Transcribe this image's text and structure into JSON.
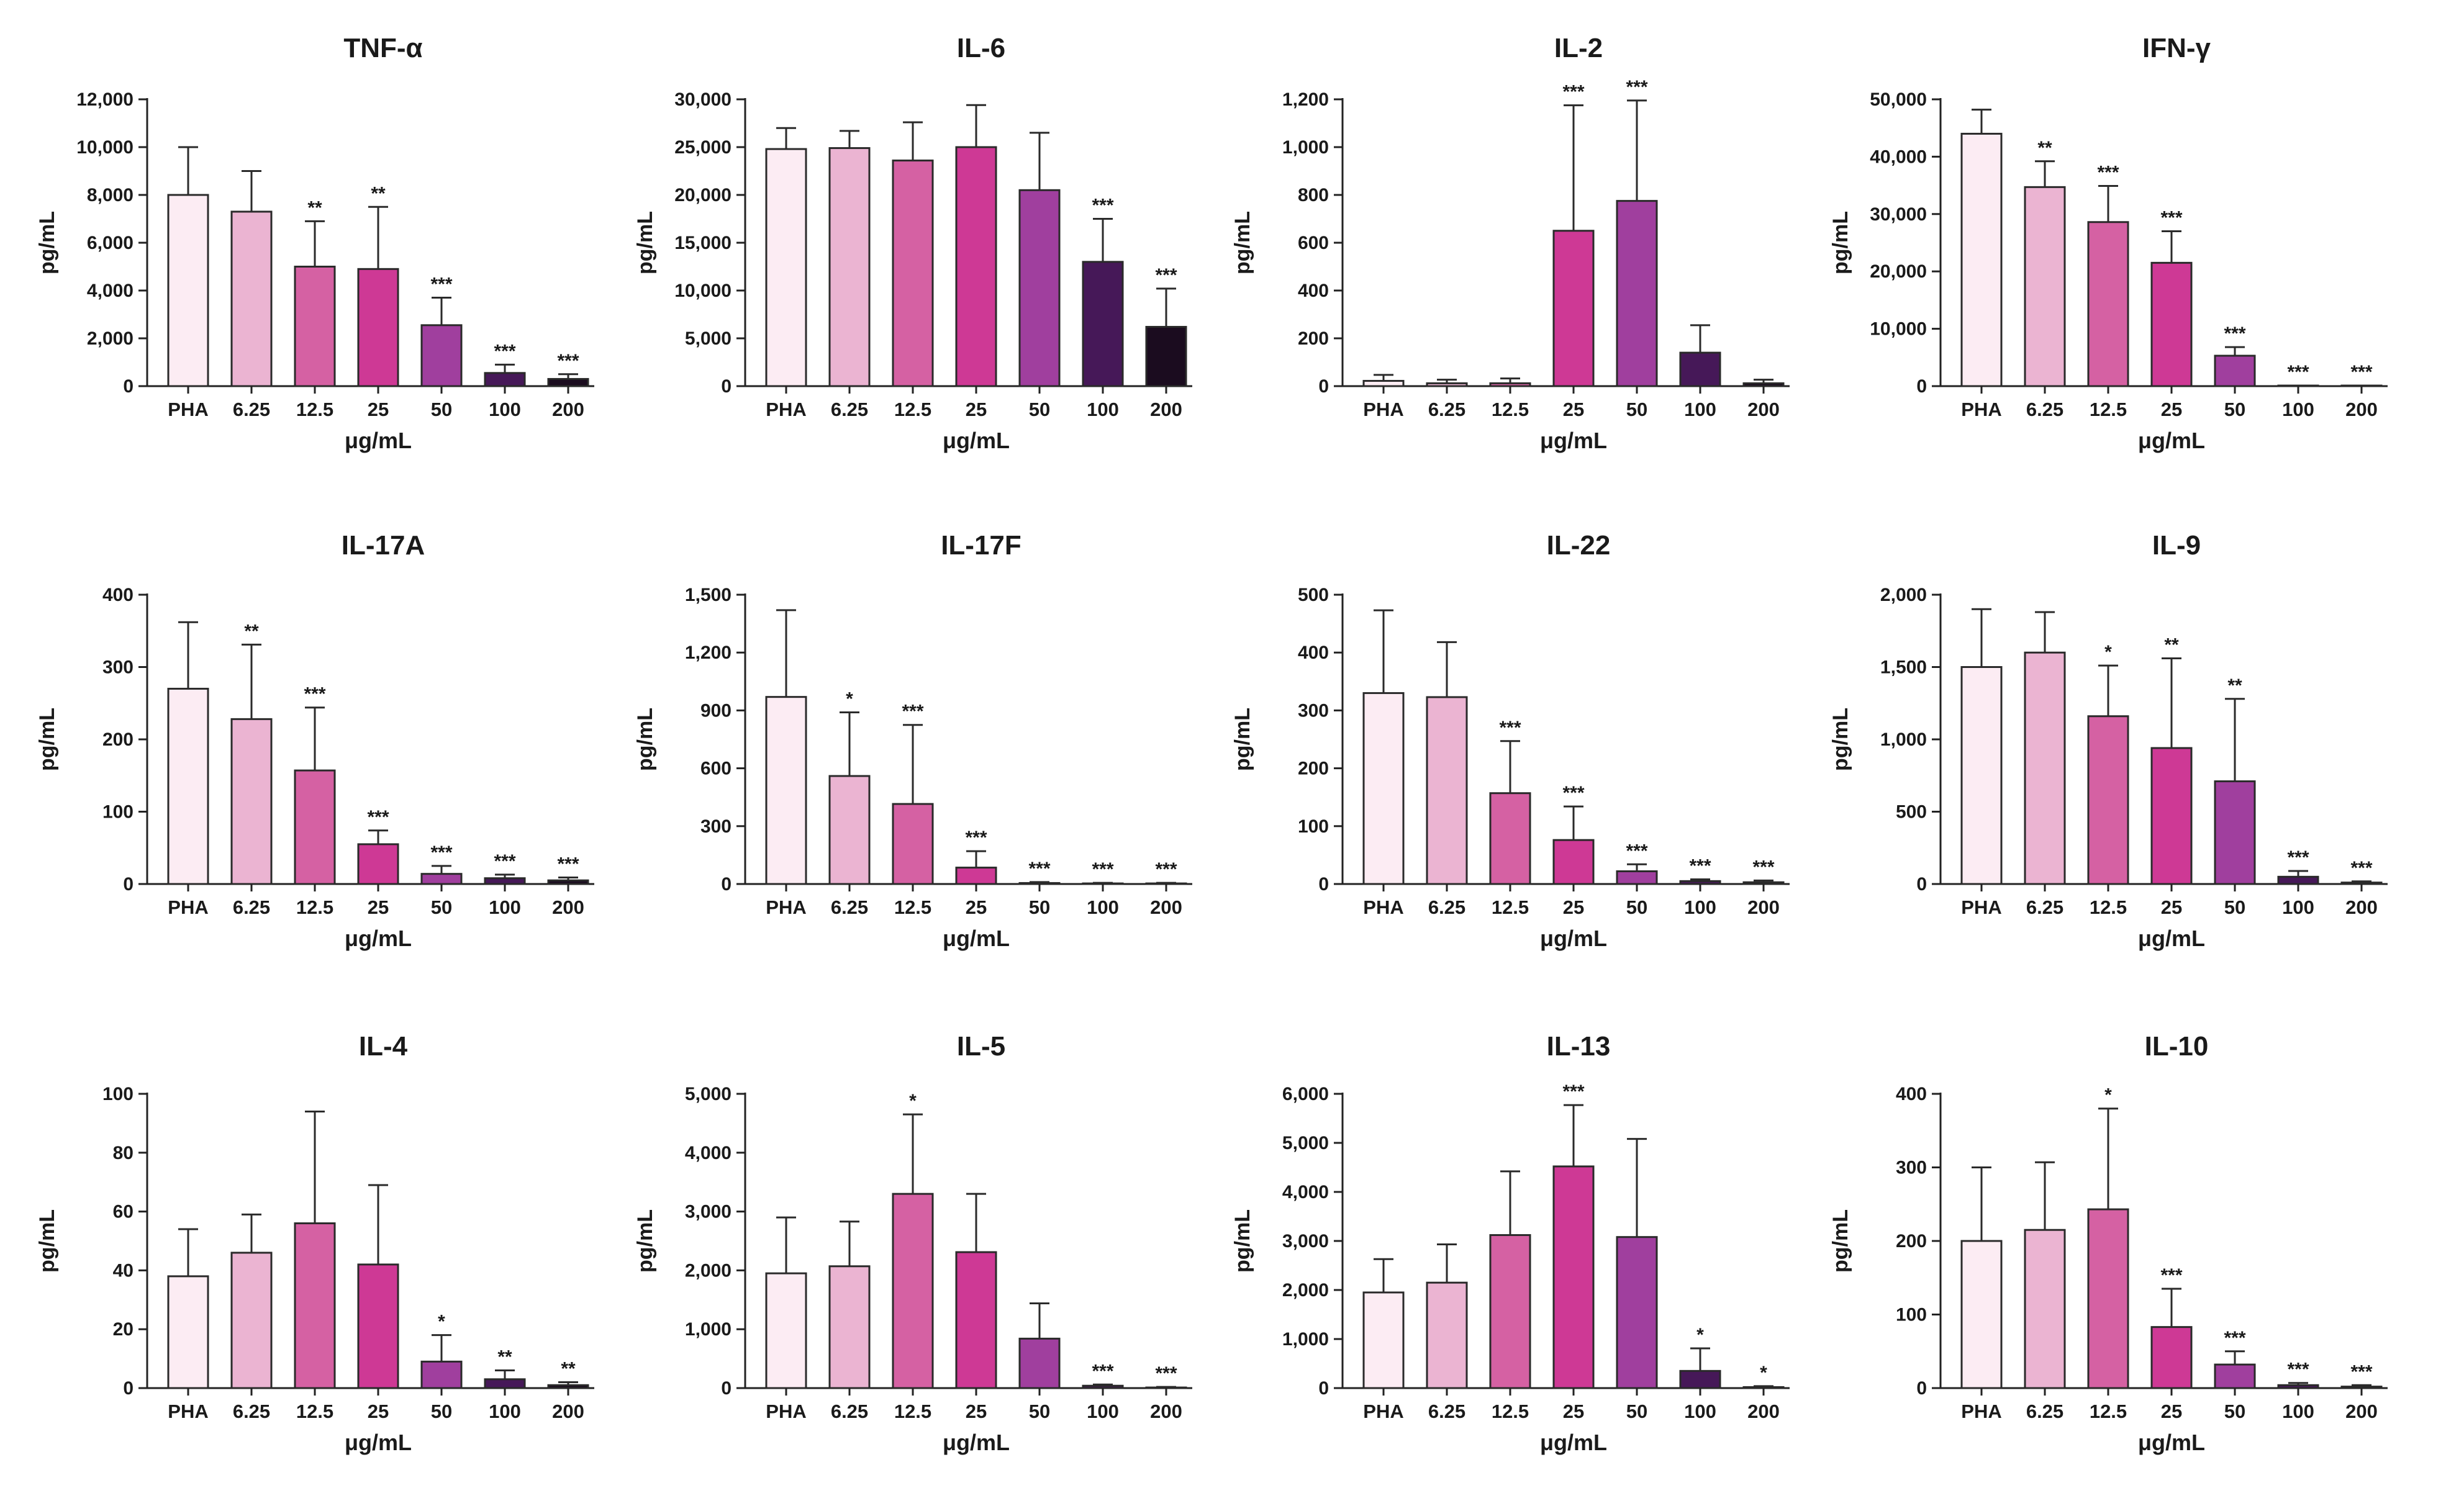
{
  "colors": [
    "#fcecf3",
    "#ebb4d2",
    "#d561a3",
    "#ce3995",
    "#a03f9e",
    "#461858",
    "#1b0c1f"
  ],
  "chart_data": [
    {
      "type": "bar",
      "title": "TNF-α",
      "ylabel": "pg/mL",
      "xlabel": "μg/mL",
      "categories": [
        "PHA",
        "6.25",
        "12.5",
        "25",
        "50",
        "100",
        "200"
      ],
      "values": [
        8000,
        7300,
        5000,
        4900,
        2550,
        550,
        300
      ],
      "errors": [
        2000,
        1700,
        1900,
        2600,
        1150,
        350,
        200
      ],
      "significance": [
        "",
        "",
        "**",
        "**",
        "***",
        "***",
        "***"
      ],
      "ylim": [
        0,
        12000
      ],
      "yticks": [
        0,
        2000,
        4000,
        6000,
        8000,
        10000,
        12000
      ],
      "ytick_labels": [
        "0",
        "2,000",
        "4,000",
        "6,000",
        "8,000",
        "10,000",
        "12,000"
      ]
    },
    {
      "type": "bar",
      "title": "IL-6",
      "ylabel": "pg/mL",
      "xlabel": "μg/mL",
      "categories": [
        "PHA",
        "6.25",
        "12.5",
        "25",
        "50",
        "100",
        "200"
      ],
      "values": [
        24800,
        24900,
        23600,
        25000,
        20500,
        13000,
        6200
      ],
      "errors": [
        2200,
        1800,
        4000,
        4400,
        6000,
        4500,
        4000
      ],
      "significance": [
        "",
        "",
        "",
        "",
        "",
        "***",
        "***"
      ],
      "ylim": [
        0,
        30000
      ],
      "yticks": [
        0,
        5000,
        10000,
        15000,
        20000,
        25000,
        30000
      ],
      "ytick_labels": [
        "0",
        "5,000",
        "10,000",
        "15,000",
        "20,000",
        "25,000",
        "30,000"
      ]
    },
    {
      "type": "bar",
      "title": "IL-2",
      "ylabel": "pg/mL",
      "xlabel": "μg/mL",
      "categories": [
        "PHA",
        "6.25",
        "12.5",
        "25",
        "50",
        "100",
        "200"
      ],
      "values": [
        22,
        12,
        12,
        650,
        775,
        140,
        12
      ],
      "errors": [
        25,
        15,
        20,
        525,
        420,
        115,
        15
      ],
      "significance": [
        "",
        "",
        "",
        "***",
        "***",
        "",
        ""
      ],
      "ylim": [
        0,
        1200
      ],
      "yticks": [
        0,
        200,
        400,
        600,
        800,
        1000,
        1200
      ],
      "ytick_labels": [
        "0",
        "200",
        "400",
        "600",
        "800",
        "1,000",
        "1,200"
      ]
    },
    {
      "type": "bar",
      "title": "IFN-γ",
      "ylabel": "pg/mL",
      "xlabel": "μg/mL",
      "categories": [
        "PHA",
        "6.25",
        "12.5",
        "25",
        "50",
        "100",
        "200"
      ],
      "values": [
        44000,
        34700,
        28600,
        21500,
        5300,
        100,
        100
      ],
      "errors": [
        4200,
        4500,
        6300,
        5500,
        1500,
        0,
        0
      ],
      "significance": [
        "",
        "**",
        "***",
        "***",
        "***",
        "***",
        "***"
      ],
      "ylim": [
        0,
        50000
      ],
      "yticks": [
        0,
        10000,
        20000,
        30000,
        40000,
        50000
      ],
      "ytick_labels": [
        "0",
        "10,000",
        "20,000",
        "30,000",
        "40,000",
        "50,000"
      ]
    },
    {
      "type": "bar",
      "title": "IL-17A",
      "ylabel": "pg/mL",
      "xlabel": "μg/mL",
      "categories": [
        "PHA",
        "6.25",
        "12.5",
        "25",
        "50",
        "100",
        "200"
      ],
      "values": [
        270,
        228,
        157,
        55,
        14,
        8,
        5
      ],
      "errors": [
        92,
        103,
        87,
        19,
        11,
        5,
        4
      ],
      "significance": [
        "",
        "**",
        "***",
        "***",
        "***",
        "***",
        "***"
      ],
      "ylim": [
        0,
        400
      ],
      "yticks": [
        0,
        100,
        200,
        300,
        400
      ],
      "ytick_labels": [
        "0",
        "100",
        "200",
        "300",
        "400"
      ]
    },
    {
      "type": "bar",
      "title": "IL-17F",
      "ylabel": "pg/mL",
      "xlabel": "μg/mL",
      "categories": [
        "PHA",
        "6.25",
        "12.5",
        "25",
        "50",
        "100",
        "200"
      ],
      "values": [
        970,
        560,
        415,
        85,
        5,
        3,
        3
      ],
      "errors": [
        450,
        330,
        410,
        85,
        5,
        3,
        3
      ],
      "significance": [
        "",
        "*",
        "***",
        "***",
        "***",
        "***",
        "***"
      ],
      "ylim": [
        0,
        1500
      ],
      "yticks": [
        0,
        300,
        600,
        900,
        1200,
        1500
      ],
      "ytick_labels": [
        "0",
        "300",
        "600",
        "900",
        "1,200",
        "1,500"
      ]
    },
    {
      "type": "bar",
      "title": "IL-22",
      "ylabel": "pg/mL",
      "xlabel": "μg/mL",
      "categories": [
        "PHA",
        "6.25",
        "12.5",
        "25",
        "50",
        "100",
        "200"
      ],
      "values": [
        330,
        323,
        157,
        76,
        22,
        5,
        3
      ],
      "errors": [
        143,
        95,
        90,
        58,
        12,
        3,
        3
      ],
      "significance": [
        "",
        "",
        "***",
        "***",
        "***",
        "***",
        "***"
      ],
      "ylim": [
        0,
        500
      ],
      "yticks": [
        0,
        100,
        200,
        300,
        400,
        500
      ],
      "ytick_labels": [
        "0",
        "100",
        "200",
        "300",
        "400",
        "500"
      ]
    },
    {
      "type": "bar",
      "title": "IL-9",
      "ylabel": "pg/mL",
      "xlabel": "μg/mL",
      "categories": [
        "PHA",
        "6.25",
        "12.5",
        "25",
        "50",
        "100",
        "200"
      ],
      "values": [
        1500,
        1600,
        1160,
        940,
        710,
        50,
        10
      ],
      "errors": [
        400,
        280,
        350,
        620,
        570,
        40,
        8
      ],
      "significance": [
        "",
        "",
        "*",
        "**",
        "**",
        "***",
        "***"
      ],
      "ylim": [
        0,
        2000
      ],
      "yticks": [
        0,
        500,
        1000,
        1500,
        2000
      ],
      "ytick_labels": [
        "0",
        "500",
        "1,000",
        "1,500",
        "2,000"
      ]
    },
    {
      "type": "bar",
      "title": "IL-4",
      "ylabel": "pg/mL",
      "xlabel": "μg/mL",
      "categories": [
        "PHA",
        "6.25",
        "12.5",
        "25",
        "50",
        "100",
        "200"
      ],
      "values": [
        38,
        46,
        56,
        42,
        9,
        3,
        1
      ],
      "errors": [
        16,
        13,
        38,
        27,
        9,
        3,
        1
      ],
      "significance": [
        "",
        "",
        "",
        "",
        "*",
        "**",
        "**"
      ],
      "ylim": [
        0,
        100
      ],
      "yticks": [
        0,
        20,
        40,
        60,
        80,
        100
      ],
      "ytick_labels": [
        "0",
        "20",
        "40",
        "60",
        "80",
        "100"
      ]
    },
    {
      "type": "bar",
      "title": "IL-5",
      "ylabel": "pg/mL",
      "xlabel": "μg/mL",
      "categories": [
        "PHA",
        "6.25",
        "12.5",
        "25",
        "50",
        "100",
        "200"
      ],
      "values": [
        1950,
        2070,
        3300,
        2310,
        840,
        40,
        10
      ],
      "errors": [
        950,
        760,
        1350,
        990,
        600,
        20,
        10
      ],
      "significance": [
        "",
        "",
        "*",
        "",
        "",
        "***",
        "***"
      ],
      "ylim": [
        0,
        5000
      ],
      "yticks": [
        0,
        1000,
        2000,
        3000,
        4000,
        5000
      ],
      "ytick_labels": [
        "0",
        "1,000",
        "2,000",
        "3,000",
        "4,000",
        "5,000"
      ]
    },
    {
      "type": "bar",
      "title": "IL-13",
      "ylabel": "pg/mL",
      "xlabel": "μg/mL",
      "categories": [
        "PHA",
        "6.25",
        "12.5",
        "25",
        "50",
        "100",
        "200"
      ],
      "values": [
        1950,
        2150,
        3120,
        4520,
        3080,
        350,
        20
      ],
      "errors": [
        680,
        780,
        1300,
        1250,
        2000,
        460,
        20
      ],
      "significance": [
        "",
        "",
        "",
        "***",
        "",
        "*",
        "*"
      ],
      "ylim": [
        0,
        6000
      ],
      "yticks": [
        0,
        1000,
        2000,
        3000,
        4000,
        5000,
        6000
      ],
      "ytick_labels": [
        "0",
        "1,000",
        "2,000",
        "3,000",
        "4,000",
        "5,000",
        "6,000"
      ]
    },
    {
      "type": "bar",
      "title": "IL-10",
      "ylabel": "pg/mL",
      "xlabel": "μg/mL",
      "categories": [
        "PHA",
        "6.25",
        "12.5",
        "25",
        "50",
        "100",
        "200"
      ],
      "values": [
        200,
        215,
        243,
        83,
        32,
        4,
        2
      ],
      "errors": [
        100,
        92,
        137,
        52,
        18,
        3,
        2
      ],
      "significance": [
        "",
        "",
        "*",
        "***",
        "***",
        "***",
        "***"
      ],
      "ylim": [
        0,
        400
      ],
      "yticks": [
        0,
        100,
        200,
        300,
        400
      ],
      "ytick_labels": [
        "0",
        "100",
        "200",
        "300",
        "400"
      ]
    }
  ]
}
